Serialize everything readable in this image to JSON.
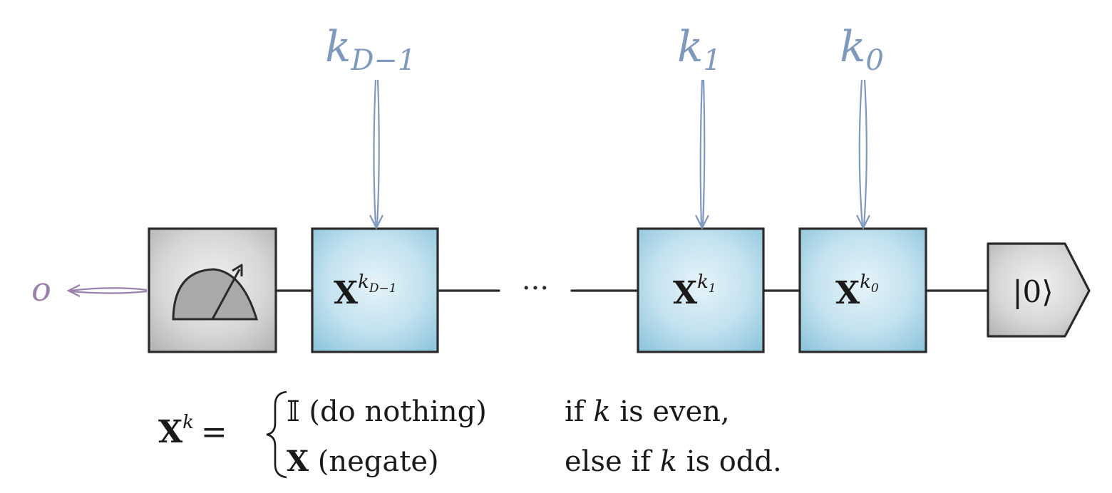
{
  "gates": {
    "g_dm1": {
      "base": "X",
      "exp_letter": "k",
      "exp_sub": "D−1"
    },
    "g_1": {
      "base": "X",
      "exp_letter": "k",
      "exp_sub": "1"
    },
    "g_0": {
      "base": "X",
      "exp_letter": "k",
      "exp_sub": "0"
    }
  },
  "inputs": {
    "k_dm1": {
      "letter": "k",
      "sub": "D−1"
    },
    "k_1": {
      "letter": "k",
      "sub": "1"
    },
    "k_0": {
      "letter": "k",
      "sub": "0"
    }
  },
  "ellipsis": "···",
  "output_label": "o",
  "init_state": "|0⟩",
  "formula": {
    "lhs_base": "X",
    "lhs_exp": "k",
    "equals": "=",
    "case1_symbol": "𝕀",
    "case1_text": " (do nothing)",
    "case1_cond_pre": "if ",
    "case1_cond_var": "k",
    "case1_cond_post": " is even,",
    "case2_symbol": "X",
    "case2_text": " (negate)",
    "case2_cond_pre": "else if ",
    "case2_cond_var": "k",
    "case2_cond_post": " is odd."
  },
  "colors": {
    "gate_blue": "#a9d3e6",
    "measure_gray": "#d2d2d2",
    "input_arrow": "#7f99bd",
    "output_arrow": "#9b7fad"
  },
  "icons": [
    "measurement-meter-icon",
    "state-preparation-icon"
  ]
}
